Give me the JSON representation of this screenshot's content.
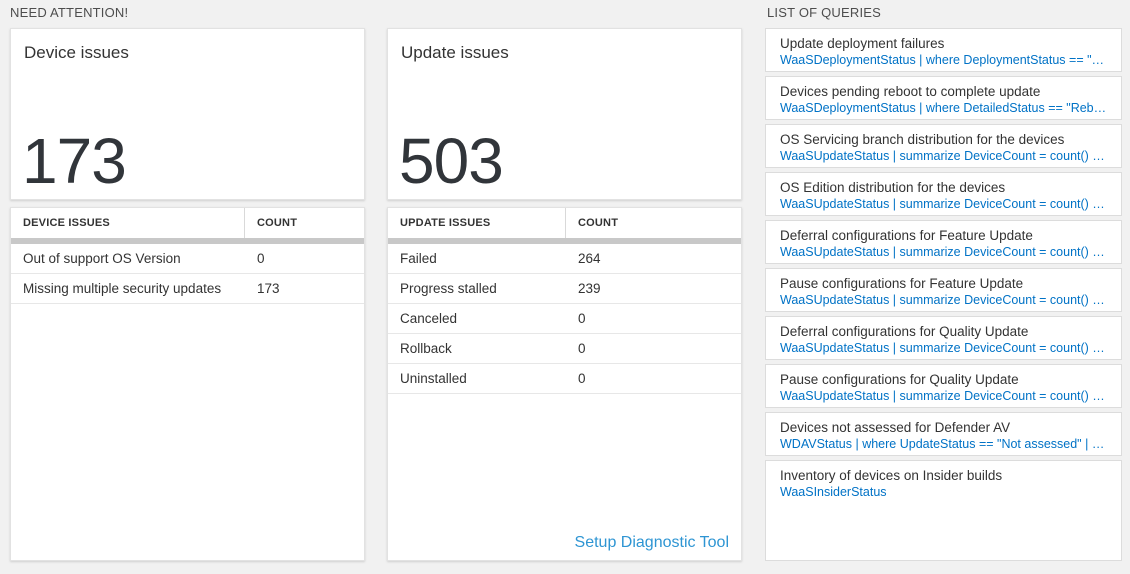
{
  "headings": {
    "need_attention": "NEED ATTENTION!",
    "list_of_queries": "LIST OF QUERIES"
  },
  "device": {
    "card_title": "Device issues",
    "total": "173",
    "table": {
      "columns": {
        "issues": "DEVICE ISSUES",
        "count": "COUNT"
      },
      "rows": [
        {
          "label": "Out of support OS Version",
          "count": "0"
        },
        {
          "label": "Missing multiple security updates",
          "count": "173"
        }
      ]
    }
  },
  "update": {
    "card_title": "Update issues",
    "total": "503",
    "table": {
      "columns": {
        "issues": "UPDATE ISSUES",
        "count": "COUNT"
      },
      "rows": [
        {
          "label": "Failed",
          "count": "264"
        },
        {
          "label": "Progress stalled",
          "count": "239"
        },
        {
          "label": "Canceled",
          "count": "0"
        },
        {
          "label": "Rollback",
          "count": "0"
        },
        {
          "label": "Uninstalled",
          "count": "0"
        }
      ]
    },
    "footer_link": "Setup Diagnostic Tool"
  },
  "queries": {
    "items": [
      {
        "title": "Update deployment failures",
        "query": "WaaSDeploymentStatus | where DeploymentStatus == \"Failed\" |..."
      },
      {
        "title": "Devices pending reboot to complete update",
        "query": "WaaSDeploymentStatus | where DetailedStatus == \"Reboot pend..."
      },
      {
        "title": "OS Servicing branch distribution for the devices",
        "query": "WaaSUpdateStatus | summarize DeviceCount = count() by OSSer..."
      },
      {
        "title": "OS Edition distribution for the devices",
        "query": "WaaSUpdateStatus | summarize DeviceCount = count() by OSEdit..."
      },
      {
        "title": "Deferral configurations for Feature Update",
        "query": "WaaSUpdateStatus | summarize DeviceCount = count() by Featur..."
      },
      {
        "title": "Pause configurations for Feature Update",
        "query": "WaaSUpdateStatus | summarize DeviceCount = count() by Featur..."
      },
      {
        "title": "Deferral configurations for Quality Update",
        "query": "WaaSUpdateStatus | summarize DeviceCount = count() by Qualit..."
      },
      {
        "title": "Pause configurations for Quality Update",
        "query": "WaaSUpdateStatus | summarize DeviceCount = count() by Qualit..."
      },
      {
        "title": "Devices not assessed for Defender AV",
        "query": "WDAVStatus | where UpdateStatus == \"Not assessed\" | render ta..."
      },
      {
        "title": "Inventory of devices on Insider builds",
        "query": "WaaSInsiderStatus"
      }
    ]
  },
  "colors": {
    "page_background": "#f1f1f1",
    "query_link_blue": "#0072c6",
    "diagnostic_link_blue": "#2e95d3",
    "scrollbar_gray": "#c8c8c8"
  }
}
